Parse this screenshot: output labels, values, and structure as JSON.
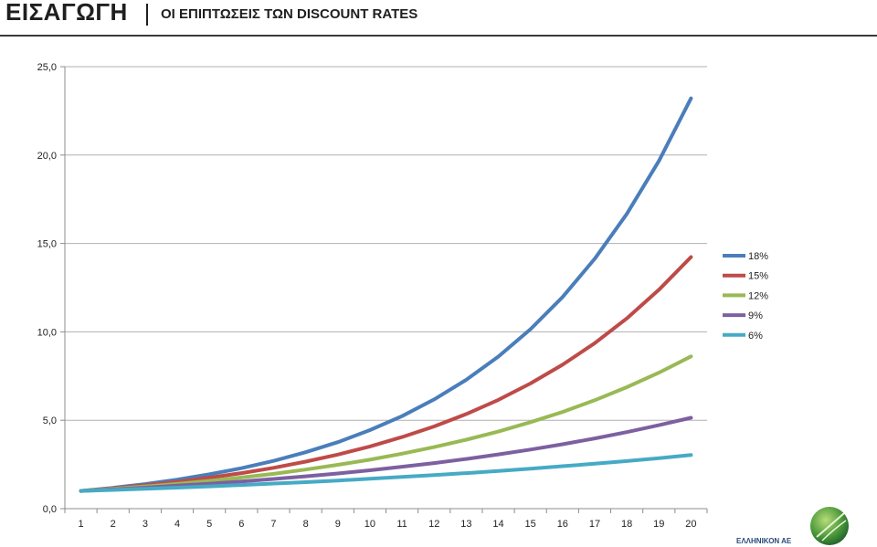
{
  "header": {
    "title": "ΕΙΣΑΓΩΓΗ",
    "subtitle": "ΟΙ ΕΠΙΠΤΩΣΕΙΣ ΤΩΝ DISCOUNT RATES"
  },
  "footer": {
    "company": "ΕΛΛΗΝΙΚΟΝ ΑΕ"
  },
  "chart_data": {
    "type": "line",
    "x": [
      1,
      2,
      3,
      4,
      5,
      6,
      7,
      8,
      9,
      10,
      11,
      12,
      13,
      14,
      15,
      16,
      17,
      18,
      19,
      20
    ],
    "ylim": [
      0,
      25
    ],
    "yticks": [
      "0,0",
      "5,0",
      "10,0",
      "15,0",
      "20,0",
      "25,0"
    ],
    "ytick_values": [
      0,
      5,
      10,
      15,
      20,
      25
    ],
    "grid": true,
    "legend_position": "right",
    "series": [
      {
        "name": "18%",
        "color": "#4a7ebb",
        "values": [
          1.0,
          1.18,
          1.39,
          1.64,
          1.94,
          2.29,
          2.7,
          3.19,
          3.76,
          4.44,
          5.23,
          6.18,
          7.29,
          8.6,
          10.15,
          11.97,
          14.13,
          16.67,
          19.67,
          23.21
        ]
      },
      {
        "name": "15%",
        "color": "#be4b48",
        "values": [
          1.0,
          1.15,
          1.32,
          1.52,
          1.75,
          2.01,
          2.31,
          2.66,
          3.06,
          3.52,
          4.05,
          4.65,
          5.35,
          6.15,
          7.08,
          8.14,
          9.36,
          10.76,
          12.38,
          14.23
        ]
      },
      {
        "name": "12%",
        "color": "#98b954",
        "values": [
          1.0,
          1.12,
          1.25,
          1.4,
          1.57,
          1.76,
          1.97,
          2.21,
          2.48,
          2.77,
          3.11,
          3.48,
          3.9,
          4.36,
          4.89,
          5.47,
          6.13,
          6.87,
          7.69,
          8.61
        ]
      },
      {
        "name": "9%",
        "color": "#7d60a0",
        "values": [
          1.0,
          1.09,
          1.19,
          1.3,
          1.41,
          1.54,
          1.68,
          1.83,
          1.99,
          2.17,
          2.37,
          2.58,
          2.81,
          3.07,
          3.34,
          3.64,
          3.97,
          4.33,
          4.72,
          5.14
        ]
      },
      {
        "name": "6%",
        "color": "#46aac5",
        "values": [
          1.0,
          1.06,
          1.12,
          1.19,
          1.26,
          1.34,
          1.42,
          1.5,
          1.59,
          1.69,
          1.79,
          1.9,
          2.01,
          2.13,
          2.26,
          2.4,
          2.54,
          2.69,
          2.85,
          3.03
        ]
      }
    ]
  }
}
